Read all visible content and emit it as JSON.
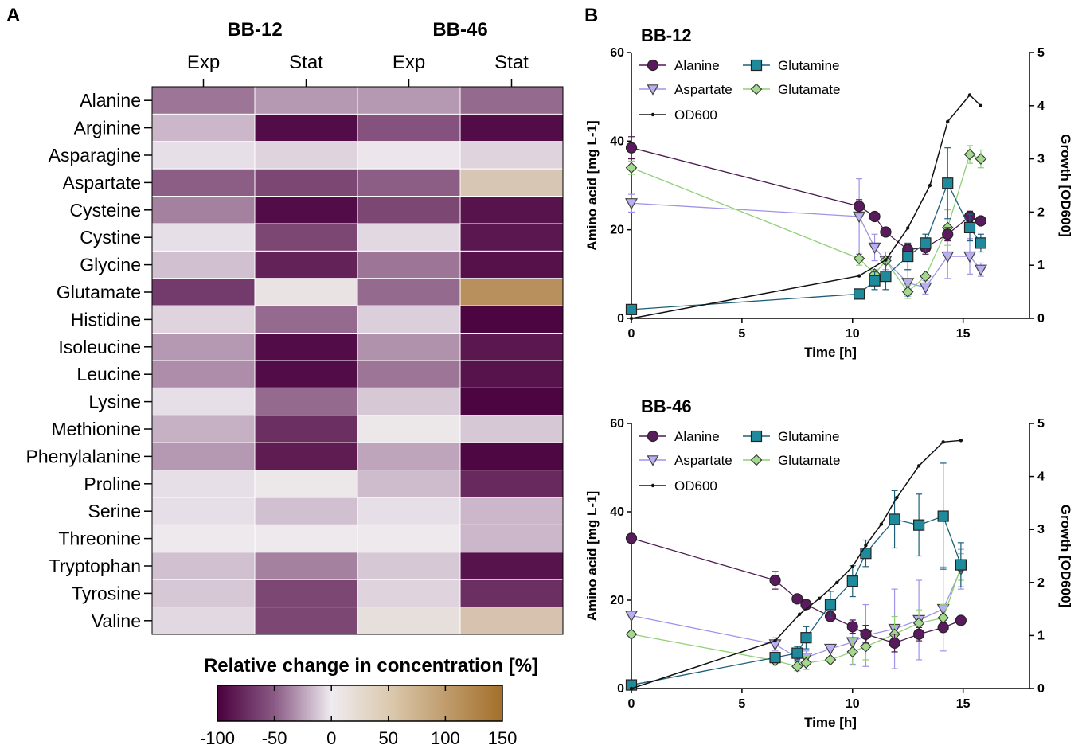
{
  "panel_a_label": "A",
  "panel_b_label": "B",
  "chart_data": [
    {
      "type": "heatmap",
      "panel": "A",
      "group_labels": [
        "BB-12",
        "BB-46"
      ],
      "columns": [
        "Exp",
        "Stat",
        "Exp",
        "Stat"
      ],
      "rows": [
        "Alanine",
        "Arginine",
        "Asparagine",
        "Aspartate",
        "Cysteine",
        "Cystine",
        "Glycine",
        "Glutamate",
        "Histidine",
        "Isoleucine",
        "Leucine",
        "Lysine",
        "Methionine",
        "Phenylalanine",
        "Proline",
        "Serine",
        "Threonine",
        "Tryptophan",
        "Tyrosine",
        "Valine"
      ],
      "values": [
        [
          -50,
          -35,
          -35,
          -55
        ],
        [
          -22,
          -95,
          -65,
          -95
        ],
        [
          -5,
          -10,
          -2,
          -10
        ],
        [
          -60,
          -70,
          -60,
          45
        ],
        [
          -45,
          -95,
          -70,
          -92
        ],
        [
          -5,
          -70,
          -8,
          -90
        ],
        [
          -18,
          -85,
          -50,
          -93
        ],
        [
          -75,
          10,
          -55,
          110
        ],
        [
          -10,
          -55,
          -12,
          -98
        ],
        [
          -35,
          -95,
          -38,
          -90
        ],
        [
          -40,
          -95,
          -50,
          -92
        ],
        [
          -5,
          -55,
          -15,
          -98
        ],
        [
          -25,
          -80,
          5,
          -15
        ],
        [
          -35,
          -88,
          -30,
          -97
        ],
        [
          -5,
          5,
          -20,
          -82
        ],
        [
          -5,
          -18,
          -5,
          -22
        ],
        [
          2,
          2,
          2,
          -22
        ],
        [
          -18,
          -45,
          -15,
          -92
        ],
        [
          -15,
          -70,
          -10,
          -80
        ],
        [
          -8,
          -70,
          15,
          50
        ]
      ],
      "colorbar": {
        "title": "Relative change in concentration [%]",
        "min": -100,
        "max": 150,
        "ticks": [
          -100,
          -50,
          0,
          50,
          100,
          150
        ],
        "colors": [
          "#4a003e",
          "#efebf0",
          "#a36f29"
        ]
      }
    },
    {
      "type": "line",
      "panel": "B",
      "title": "BB-12",
      "xlabel": "Time [h]",
      "ylabel": "Amino acid [mg L-1]",
      "y2label": "Growth [OD600]",
      "xlim": [
        0,
        18
      ],
      "ylim": [
        0,
        60
      ],
      "y2lim": [
        0,
        5
      ],
      "xticks": [
        0,
        5,
        10,
        15
      ],
      "yticks": [
        0,
        20,
        40,
        60
      ],
      "y2ticks": [
        0,
        1,
        2,
        3,
        4,
        5
      ],
      "legend": "top-left",
      "series": [
        {
          "name": "Alanine",
          "marker": "circle",
          "color": "#4b1a4f",
          "fill": "#5a1a5e",
          "x": [
            0,
            10.3,
            11.0,
            11.5,
            12.5,
            13.3,
            14.3,
            15.3,
            15.8
          ],
          "y": [
            38.5,
            25.3,
            23.0,
            19.5,
            15.5,
            16.0,
            19.0,
            23.0,
            22.0
          ],
          "err": [
            2.5,
            1.5,
            0,
            0,
            1.2,
            1.5,
            1.5,
            1.2,
            0
          ]
        },
        {
          "name": "Glutamine",
          "marker": "square",
          "color": "#1d5f78",
          "fill": "#1f8a9c",
          "x": [
            0,
            10.3,
            11.0,
            11.5,
            12.5,
            13.3,
            14.3,
            15.3,
            15.8
          ],
          "y": [
            2.0,
            5.5,
            8.5,
            9.5,
            14.0,
            17.0,
            30.5,
            20.5,
            17.0
          ],
          "err": [
            0,
            0,
            2.0,
            3.0,
            3.0,
            2.0,
            8.0,
            3.0,
            2.0
          ]
        },
        {
          "name": "Aspartate",
          "marker": "triangle",
          "color": "#9e94e8",
          "fill": "#b8b0f2",
          "x": [
            0,
            10.3,
            11.0,
            11.5,
            12.5,
            13.3,
            14.3,
            15.3,
            15.8
          ],
          "y": [
            26.0,
            23.0,
            16.0,
            13.0,
            8.0,
            7.0,
            14.0,
            14.0,
            11.0
          ],
          "err": [
            2.0,
            8.5,
            3.0,
            2.0,
            3.0,
            1.5,
            5.0,
            4.0,
            1.5
          ]
        },
        {
          "name": "Glutamate",
          "marker": "diamond",
          "color": "#8fcf75",
          "fill": "#a3d98c",
          "x": [
            0,
            10.3,
            11.0,
            11.5,
            12.5,
            13.3,
            14.3,
            15.3,
            15.8
          ],
          "y": [
            34.0,
            13.5,
            10.0,
            13.0,
            6.0,
            9.5,
            20.5,
            37.0,
            36.0
          ],
          "err": [
            1.5,
            1.5,
            1.0,
            0,
            1.5,
            0,
            4.0,
            2.0,
            2.0
          ]
        },
        {
          "name": "OD600",
          "axis": "y2",
          "marker": "dot",
          "color": "#111111",
          "fill": "#111111",
          "x": [
            0,
            10.3,
            11.5,
            12.5,
            13.5,
            14.3,
            15.3,
            15.8
          ],
          "y": [
            0.0,
            0.8,
            1.1,
            1.7,
            2.5,
            3.7,
            4.2,
            4.0
          ]
        }
      ]
    },
    {
      "type": "line",
      "panel": "B",
      "title": "BB-46",
      "xlabel": "Time [h]",
      "ylabel": "Amino acid [mg L-1]",
      "y2label": "Growth [OD600]",
      "xlim": [
        0,
        18
      ],
      "ylim": [
        0,
        60
      ],
      "y2lim": [
        0,
        5
      ],
      "xticks": [
        0,
        5,
        10,
        15
      ],
      "yticks": [
        0,
        20,
        40,
        60
      ],
      "y2ticks": [
        0,
        1,
        2,
        3,
        4,
        5
      ],
      "legend": "top-left",
      "series": [
        {
          "name": "Alanine",
          "marker": "circle",
          "color": "#4b1a4f",
          "fill": "#5a1a5e",
          "x": [
            0,
            6.5,
            7.5,
            7.9,
            9.0,
            10.0,
            10.6,
            11.9,
            13.0,
            14.1,
            14.9
          ],
          "y": [
            34.0,
            24.5,
            20.3,
            19.0,
            16.3,
            14.0,
            12.3,
            10.3,
            12.3,
            13.8,
            15.4
          ],
          "err": [
            0,
            2.0,
            1.0,
            1.0,
            0,
            1.5,
            2.0,
            2.0,
            1.5,
            1.0,
            0
          ]
        },
        {
          "name": "Glutamine",
          "marker": "square",
          "color": "#1d5f78",
          "fill": "#1f8a9c",
          "x": [
            0,
            6.5,
            7.5,
            7.9,
            9.0,
            10.0,
            10.6,
            11.9,
            13.0,
            14.1,
            14.9
          ],
          "y": [
            0.8,
            7.0,
            8.0,
            11.5,
            19.0,
            24.3,
            30.6,
            38.3,
            37.0,
            39.0,
            28.0
          ],
          "err": [
            0,
            1.0,
            1.5,
            2.5,
            3.0,
            3.5,
            3.0,
            6.5,
            7.0,
            12.0,
            5.0
          ]
        },
        {
          "name": "Aspartate",
          "marker": "triangle",
          "color": "#9e94e8",
          "fill": "#b8b0f2",
          "x": [
            0,
            6.5,
            7.5,
            7.9,
            9.0,
            10.0,
            10.6,
            11.9,
            13.0,
            14.1,
            14.9
          ],
          "y": [
            16.5,
            10.0,
            7.0,
            7.0,
            9.0,
            10.5,
            12.0,
            13.5,
            15.5,
            18.0,
            27.0
          ],
          "err": [
            0,
            1.5,
            1.5,
            1.5,
            1.0,
            5.0,
            7.0,
            9.0,
            9.0,
            9.5,
            4.5
          ]
        },
        {
          "name": "Glutamate",
          "marker": "diamond",
          "color": "#8fcf75",
          "fill": "#a3d98c",
          "x": [
            0,
            6.5,
            7.5,
            7.9,
            9.0,
            10.0,
            10.6,
            11.9,
            13.0,
            14.1,
            14.9
          ],
          "y": [
            12.3,
            6.3,
            5.0,
            5.8,
            6.5,
            8.3,
            9.5,
            12.3,
            14.8,
            16.0,
            27.5
          ],
          "err": [
            0,
            1.0,
            1.0,
            1.5,
            0,
            3.0,
            3.0,
            4.0,
            3.0,
            3.0,
            3.0
          ]
        },
        {
          "name": "OD600",
          "axis": "y2",
          "marker": "dot",
          "color": "#111111",
          "fill": "#111111",
          "x": [
            0,
            6.5,
            7.6,
            8.5,
            9.3,
            10.0,
            10.6,
            11.3,
            12.0,
            13.0,
            14.1,
            14.9
          ],
          "y": [
            0.0,
            0.9,
            1.4,
            1.7,
            2.0,
            2.3,
            2.7,
            3.1,
            3.6,
            4.2,
            4.65,
            4.68
          ]
        }
      ]
    }
  ]
}
